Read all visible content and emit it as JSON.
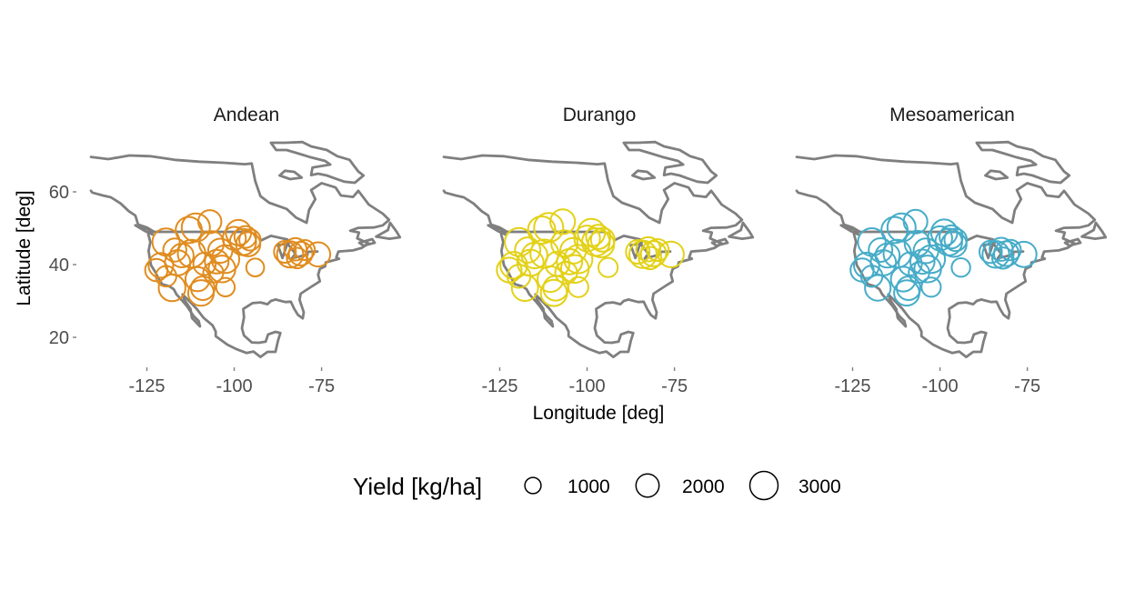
{
  "chart_data": {
    "type": "scatter",
    "subtype": "faceted bubble map of sites over North America outline",
    "xlabel": "Longitude [deg]",
    "ylabel": "Latitude [deg]",
    "xlim": [
      -141,
      -52
    ],
    "ylim": [
      15,
      72
    ],
    "x_ticks": [
      -125,
      -100,
      -75
    ],
    "x_tick_labels": [
      "-125",
      "-100",
      "-75"
    ],
    "y_ticks": [
      20,
      40,
      60
    ],
    "y_tick_labels": [
      "20",
      "40",
      "60"
    ],
    "grid": false,
    "size_legend": {
      "title": "Yield [kg/ha]",
      "position": "bottom",
      "breaks": [
        1000,
        2000,
        3000
      ],
      "labels": [
        "1000",
        "2000",
        "3000"
      ]
    },
    "panels": [
      {
        "name": "Andean",
        "color": "#E08C1F",
        "sites": [
          {
            "lon": -122.3,
            "lat": 38.5,
            "yield": 1900
          },
          {
            "lon": -121.0,
            "lat": 39.8,
            "yield": 2300
          },
          {
            "lon": -119.5,
            "lat": 36.8,
            "yield": 1600
          },
          {
            "lon": -119.5,
            "lat": 46.2,
            "yield": 2800
          },
          {
            "lon": -117.8,
            "lat": 33.6,
            "yield": 2700
          },
          {
            "lon": -117.0,
            "lat": 44.0,
            "yield": 2000
          },
          {
            "lon": -116.2,
            "lat": 40.5,
            "yield": 2400
          },
          {
            "lon": -115.0,
            "lat": 42.5,
            "yield": 2100
          },
          {
            "lon": -113.0,
            "lat": 49.5,
            "yield": 2600
          },
          {
            "lon": -112.2,
            "lat": 43.0,
            "yield": 2900
          },
          {
            "lon": -111.0,
            "lat": 50.2,
            "yield": 3000
          },
          {
            "lon": -110.5,
            "lat": 36.0,
            "yield": 2200
          },
          {
            "lon": -109.5,
            "lat": 32.2,
            "yield": 2500
          },
          {
            "lon": -109.0,
            "lat": 33.5,
            "yield": 2100
          },
          {
            "lon": -108.5,
            "lat": 40.2,
            "yield": 1900
          },
          {
            "lon": -107.0,
            "lat": 51.8,
            "yield": 2000
          },
          {
            "lon": -106.5,
            "lat": 45.8,
            "yield": 2300
          },
          {
            "lon": -106.0,
            "lat": 37.8,
            "yield": 1500
          },
          {
            "lon": -105.0,
            "lat": 40.8,
            "yield": 2100
          },
          {
            "lon": -104.0,
            "lat": 43.8,
            "yield": 2200
          },
          {
            "lon": -103.5,
            "lat": 38.8,
            "yield": 2700
          },
          {
            "lon": -102.5,
            "lat": 41.5,
            "yield": 2900
          },
          {
            "lon": -102.5,
            "lat": 33.8,
            "yield": 1300
          },
          {
            "lon": -100.0,
            "lat": 47.2,
            "yield": 2000
          },
          {
            "lon": -98.8,
            "lat": 48.8,
            "yield": 2400
          },
          {
            "lon": -97.5,
            "lat": 46.2,
            "yield": 2600
          },
          {
            "lon": -96.8,
            "lat": 47.6,
            "yield": 1800
          },
          {
            "lon": -96.0,
            "lat": 45.6,
            "yield": 2200
          },
          {
            "lon": -95.5,
            "lat": 46.8,
            "yield": 1700
          },
          {
            "lon": -94.0,
            "lat": 39.2,
            "yield": 1200
          },
          {
            "lon": -85.5,
            "lat": 43.5,
            "yield": 1800
          },
          {
            "lon": -84.0,
            "lat": 42.8,
            "yield": 2600
          },
          {
            "lon": -82.5,
            "lat": 44.2,
            "yield": 1900
          },
          {
            "lon": -82.0,
            "lat": 41.8,
            "yield": 1600
          },
          {
            "lon": -81.0,
            "lat": 43.0,
            "yield": 2100
          },
          {
            "lon": -79.8,
            "lat": 44.0,
            "yield": 1500
          },
          {
            "lon": -76.0,
            "lat": 42.8,
            "yield": 2200
          }
        ]
      },
      {
        "name": "Durango",
        "color": "#E3D117",
        "sites": [
          {
            "lon": -122.3,
            "lat": 38.5,
            "yield": 2300
          },
          {
            "lon": -121.0,
            "lat": 39.8,
            "yield": 2700
          },
          {
            "lon": -119.5,
            "lat": 36.8,
            "yield": 2000
          },
          {
            "lon": -119.5,
            "lat": 46.2,
            "yield": 3000
          },
          {
            "lon": -117.8,
            "lat": 33.6,
            "yield": 2600
          },
          {
            "lon": -117.0,
            "lat": 44.0,
            "yield": 2400
          },
          {
            "lon": -116.2,
            "lat": 40.5,
            "yield": 2600
          },
          {
            "lon": -115.0,
            "lat": 42.5,
            "yield": 2500
          },
          {
            "lon": -113.0,
            "lat": 49.5,
            "yield": 2800
          },
          {
            "lon": -112.2,
            "lat": 43.0,
            "yield": 3000
          },
          {
            "lon": -111.0,
            "lat": 50.2,
            "yield": 3200
          },
          {
            "lon": -110.5,
            "lat": 36.0,
            "yield": 2500
          },
          {
            "lon": -109.5,
            "lat": 32.2,
            "yield": 2600
          },
          {
            "lon": -109.0,
            "lat": 33.5,
            "yield": 2300
          },
          {
            "lon": -108.5,
            "lat": 40.2,
            "yield": 2200
          },
          {
            "lon": -107.0,
            "lat": 51.8,
            "yield": 2300
          },
          {
            "lon": -106.5,
            "lat": 45.8,
            "yield": 2600
          },
          {
            "lon": -106.0,
            "lat": 37.8,
            "yield": 1800
          },
          {
            "lon": -105.0,
            "lat": 40.8,
            "yield": 2400
          },
          {
            "lon": -104.0,
            "lat": 43.8,
            "yield": 2500
          },
          {
            "lon": -103.5,
            "lat": 38.8,
            "yield": 2900
          },
          {
            "lon": -102.5,
            "lat": 41.5,
            "yield": 3000
          },
          {
            "lon": -102.5,
            "lat": 33.8,
            "yield": 1500
          },
          {
            "lon": -100.0,
            "lat": 47.2,
            "yield": 2500
          },
          {
            "lon": -98.8,
            "lat": 48.8,
            "yield": 2800
          },
          {
            "lon": -97.5,
            "lat": 46.2,
            "yield": 2900
          },
          {
            "lon": -96.8,
            "lat": 47.6,
            "yield": 2200
          },
          {
            "lon": -96.0,
            "lat": 45.6,
            "yield": 2600
          },
          {
            "lon": -95.5,
            "lat": 46.8,
            "yield": 2100
          },
          {
            "lon": -94.0,
            "lat": 39.2,
            "yield": 1400
          },
          {
            "lon": -85.5,
            "lat": 43.5,
            "yield": 2100
          },
          {
            "lon": -84.0,
            "lat": 42.8,
            "yield": 2800
          },
          {
            "lon": -82.5,
            "lat": 44.2,
            "yield": 2200
          },
          {
            "lon": -82.0,
            "lat": 41.8,
            "yield": 1900
          },
          {
            "lon": -81.0,
            "lat": 43.0,
            "yield": 2400
          },
          {
            "lon": -79.8,
            "lat": 44.0,
            "yield": 1800
          },
          {
            "lon": -76.0,
            "lat": 42.8,
            "yield": 2500
          }
        ]
      },
      {
        "name": "Mesoamerican",
        "color": "#46ACC8",
        "sites": [
          {
            "lon": -122.3,
            "lat": 38.5,
            "yield": 2000
          },
          {
            "lon": -121.0,
            "lat": 39.8,
            "yield": 2400
          },
          {
            "lon": -119.5,
            "lat": 36.8,
            "yield": 1700
          },
          {
            "lon": -119.5,
            "lat": 46.2,
            "yield": 2900
          },
          {
            "lon": -117.8,
            "lat": 33.6,
            "yield": 2500
          },
          {
            "lon": -117.0,
            "lat": 44.0,
            "yield": 2100
          },
          {
            "lon": -116.2,
            "lat": 40.5,
            "yield": 2400
          },
          {
            "lon": -115.0,
            "lat": 42.5,
            "yield": 2200
          },
          {
            "lon": -113.0,
            "lat": 49.5,
            "yield": 2600
          },
          {
            "lon": -112.2,
            "lat": 43.0,
            "yield": 2900
          },
          {
            "lon": -111.0,
            "lat": 50.2,
            "yield": 3000
          },
          {
            "lon": -110.5,
            "lat": 36.0,
            "yield": 2300
          },
          {
            "lon": -109.5,
            "lat": 32.2,
            "yield": 2400
          },
          {
            "lon": -109.0,
            "lat": 33.5,
            "yield": 2100
          },
          {
            "lon": -108.5,
            "lat": 40.2,
            "yield": 2000
          },
          {
            "lon": -107.0,
            "lat": 51.8,
            "yield": 2100
          },
          {
            "lon": -106.5,
            "lat": 45.8,
            "yield": 2400
          },
          {
            "lon": -106.0,
            "lat": 37.8,
            "yield": 1600
          },
          {
            "lon": -105.0,
            "lat": 40.8,
            "yield": 2200
          },
          {
            "lon": -104.0,
            "lat": 43.8,
            "yield": 2300
          },
          {
            "lon": -103.5,
            "lat": 38.8,
            "yield": 2700
          },
          {
            "lon": -102.5,
            "lat": 41.5,
            "yield": 2900
          },
          {
            "lon": -102.5,
            "lat": 33.8,
            "yield": 1400
          },
          {
            "lon": -100.0,
            "lat": 47.2,
            "yield": 2200
          },
          {
            "lon": -98.8,
            "lat": 48.8,
            "yield": 2600
          },
          {
            "lon": -97.5,
            "lat": 46.2,
            "yield": 2700
          },
          {
            "lon": -96.8,
            "lat": 47.6,
            "yield": 2000
          },
          {
            "lon": -96.0,
            "lat": 45.6,
            "yield": 2400
          },
          {
            "lon": -95.5,
            "lat": 46.8,
            "yield": 1900
          },
          {
            "lon": -94.0,
            "lat": 39.2,
            "yield": 1300
          },
          {
            "lon": -85.5,
            "lat": 43.5,
            "yield": 1900
          },
          {
            "lon": -84.0,
            "lat": 42.8,
            "yield": 2700
          },
          {
            "lon": -82.5,
            "lat": 44.2,
            "yield": 2000
          },
          {
            "lon": -82.0,
            "lat": 41.8,
            "yield": 1700
          },
          {
            "lon": -81.0,
            "lat": 43.0,
            "yield": 2300
          },
          {
            "lon": -79.8,
            "lat": 44.0,
            "yield": 1600
          },
          {
            "lon": -76.0,
            "lat": 42.8,
            "yield": 2400
          }
        ]
      }
    ]
  }
}
